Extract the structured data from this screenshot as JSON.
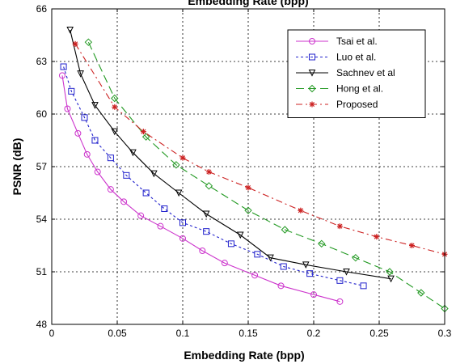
{
  "chart_data": {
    "type": "line",
    "title": "Embedding Rate (bpp)",
    "xlabel": "Embedding Rate (bpp)",
    "ylabel": "PSNR (dB)",
    "xlim": [
      0,
      0.3
    ],
    "ylim": [
      48,
      66
    ],
    "xticks": [
      0,
      0.05,
      0.1,
      0.15,
      0.2,
      0.25,
      0.3
    ],
    "xtick_labels": [
      "0",
      "0.05",
      "0.1",
      "0.15",
      "0.2",
      "0.25",
      "0.3"
    ],
    "yticks": [
      48,
      51,
      54,
      57,
      60,
      63,
      66
    ],
    "ytick_labels": [
      "48",
      "51",
      "54",
      "57",
      "60",
      "63",
      "66"
    ],
    "grid": true,
    "legend_position": "top-right",
    "series": [
      {
        "name": "Tsai et al.",
        "color": "#cc33cc",
        "dash": "solid",
        "marker": "circle",
        "x": [
          0.008,
          0.012,
          0.02,
          0.027,
          0.035,
          0.045,
          0.055,
          0.068,
          0.083,
          0.1,
          0.115,
          0.132,
          0.155,
          0.175,
          0.2,
          0.22
        ],
        "y": [
          62.2,
          60.3,
          58.9,
          57.7,
          56.7,
          55.7,
          55.0,
          54.2,
          53.6,
          52.9,
          52.2,
          51.5,
          50.8,
          50.2,
          49.7,
          49.3
        ]
      },
      {
        "name": "Luo et al.",
        "color": "#2222cc",
        "dash": "3,3",
        "marker": "square",
        "x": [
          0.009,
          0.015,
          0.025,
          0.033,
          0.045,
          0.057,
          0.072,
          0.086,
          0.1,
          0.118,
          0.137,
          0.157,
          0.177,
          0.197,
          0.22,
          0.238
        ],
        "y": [
          62.7,
          61.3,
          59.8,
          58.5,
          57.5,
          56.5,
          55.5,
          54.6,
          53.8,
          53.3,
          52.6,
          52.0,
          51.3,
          50.9,
          50.5,
          50.2
        ]
      },
      {
        "name": "Sachnev et al",
        "color": "#000000",
        "dash": "solid",
        "marker": "triangle-down",
        "x": [
          0.014,
          0.022,
          0.033,
          0.048,
          0.062,
          0.078,
          0.097,
          0.118,
          0.144,
          0.167,
          0.194,
          0.225,
          0.259
        ],
        "y": [
          64.8,
          62.3,
          60.5,
          59.0,
          57.8,
          56.6,
          55.5,
          54.3,
          53.1,
          51.8,
          51.4,
          51.0,
          50.6
        ]
      },
      {
        "name": "Hong et al.",
        "color": "#229922",
        "dash": "10,5",
        "marker": "diamond",
        "x": [
          0.028,
          0.048,
          0.072,
          0.095,
          0.12,
          0.15,
          0.178,
          0.206,
          0.232,
          0.258,
          0.282,
          0.3
        ],
        "y": [
          64.1,
          60.9,
          58.7,
          57.1,
          55.9,
          54.5,
          53.4,
          52.6,
          51.8,
          51.0,
          49.8,
          48.9
        ]
      },
      {
        "name": "Proposed",
        "color": "#cc2222",
        "dash": "8,4,2,4",
        "marker": "star",
        "x": [
          0.018,
          0.048,
          0.07,
          0.1,
          0.12,
          0.15,
          0.19,
          0.22,
          0.248,
          0.275,
          0.3
        ],
        "y": [
          64.0,
          60.4,
          59.0,
          57.5,
          56.7,
          55.8,
          54.5,
          53.6,
          53.0,
          52.5,
          52.0
        ]
      }
    ]
  }
}
